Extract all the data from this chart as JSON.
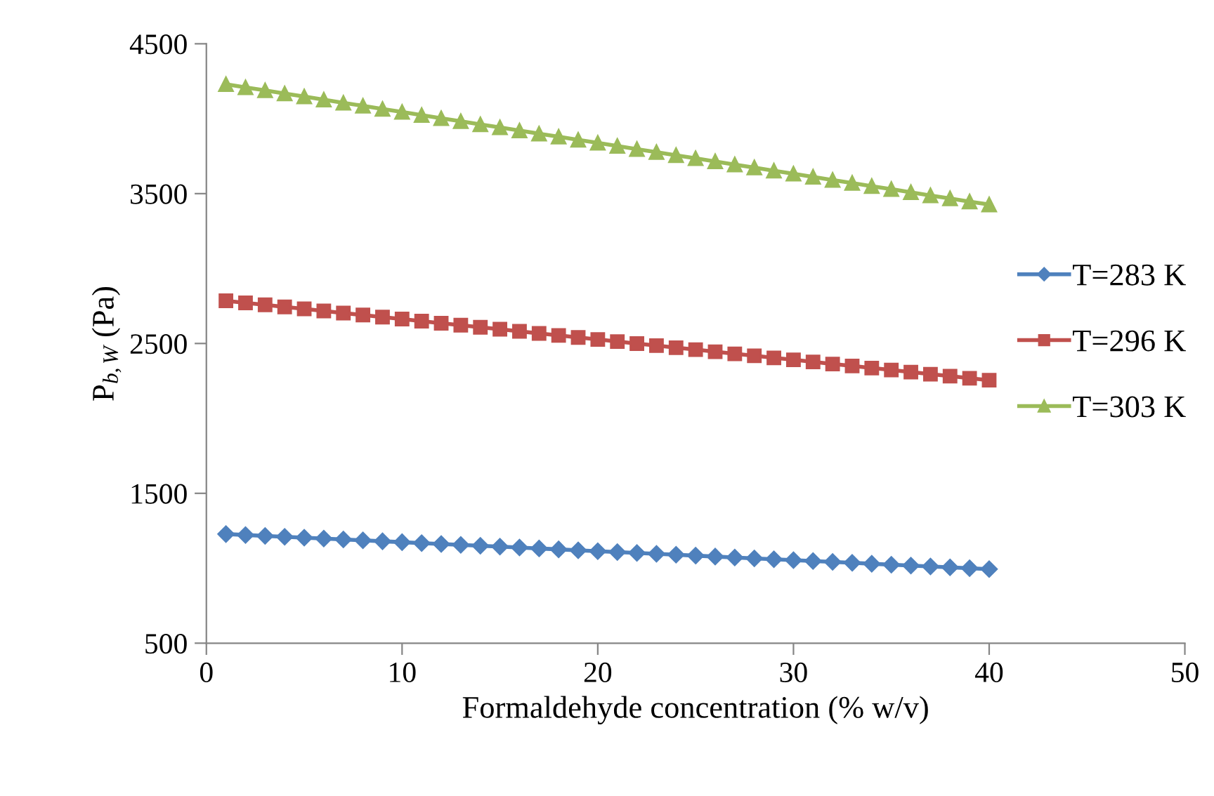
{
  "chart_data": {
    "type": "line",
    "xlabel": "Formaldehyde concentration (% w/v)",
    "ylabel": "P$_{b,W}$ (Pa)",
    "x": [
      1,
      2,
      3,
      4,
      5,
      6,
      7,
      8,
      9,
      10,
      11,
      12,
      13,
      14,
      15,
      16,
      17,
      18,
      19,
      20,
      21,
      22,
      23,
      24,
      25,
      26,
      27,
      28,
      29,
      30,
      31,
      32,
      33,
      34,
      35,
      36,
      37,
      38,
      39,
      40
    ],
    "series": [
      {
        "name": "T=283 K",
        "color": "#4f81bd",
        "marker": "diamond",
        "values": [
          1228,
          1222,
          1216,
          1210,
          1204,
          1198,
          1192,
          1186,
          1180,
          1174,
          1168,
          1162,
          1156,
          1150,
          1144,
          1138,
          1132,
          1126,
          1120,
          1114,
          1108,
          1102,
          1096,
          1090,
          1084,
          1078,
          1072,
          1066,
          1060,
          1054,
          1048,
          1042,
          1036,
          1030,
          1024,
          1018,
          1012,
          1006,
          1000,
          994
        ]
      },
      {
        "name": "T=296 K",
        "color": "#c0504d",
        "marker": "square",
        "values": [
          2785,
          2771,
          2758,
          2744,
          2731,
          2717,
          2703,
          2690,
          2676,
          2663,
          2649,
          2635,
          2622,
          2608,
          2595,
          2581,
          2567,
          2554,
          2540,
          2527,
          2513,
          2499,
          2486,
          2472,
          2459,
          2445,
          2431,
          2418,
          2404,
          2391,
          2377,
          2363,
          2350,
          2336,
          2323,
          2309,
          2295,
          2282,
          2268,
          2255
        ]
      },
      {
        "name": "T=303 K",
        "color": "#9bbb59",
        "marker": "triangle",
        "values": [
          4230,
          4209,
          4189,
          4168,
          4148,
          4127,
          4106,
          4086,
          4065,
          4045,
          4024,
          4003,
          3983,
          3962,
          3942,
          3921,
          3900,
          3880,
          3859,
          3839,
          3818,
          3797,
          3777,
          3756,
          3736,
          3715,
          3694,
          3674,
          3653,
          3633,
          3612,
          3591,
          3571,
          3550,
          3530,
          3509,
          3488,
          3468,
          3447,
          3427
        ]
      }
    ],
    "xlim": [
      0,
      50
    ],
    "xticks": [
      0,
      10,
      20,
      30,
      40,
      50
    ],
    "ylim": [
      500,
      4500
    ],
    "yticks": [
      500,
      1500,
      2500,
      3500,
      4500
    ],
    "grid": false,
    "legend": "right",
    "line_style": "solid"
  }
}
